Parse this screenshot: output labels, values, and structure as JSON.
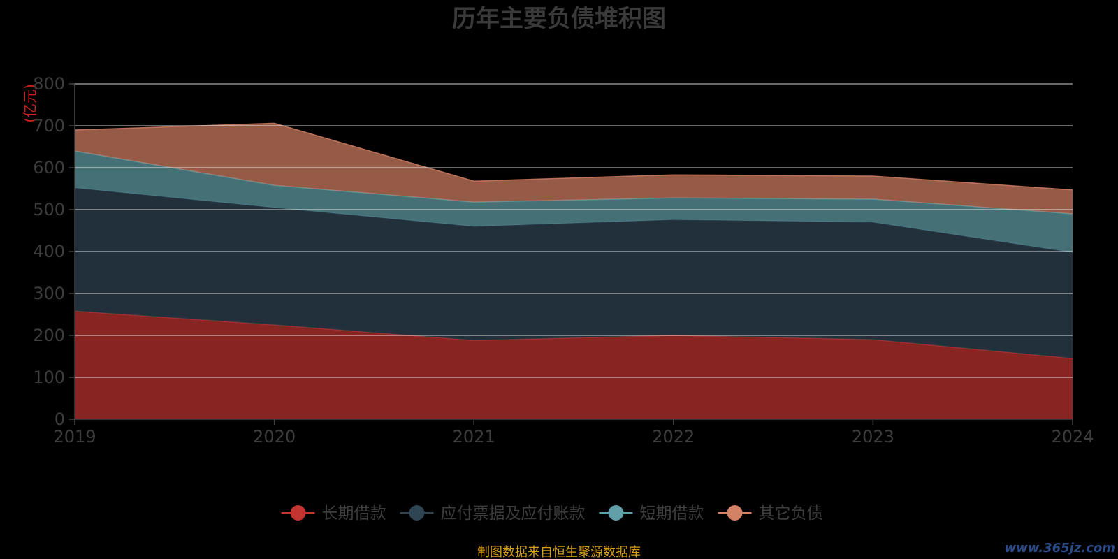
{
  "chart_data": {
    "type": "area",
    "stacked": true,
    "title": "历年主要负债堆积图",
    "unit_label": "(亿元)",
    "x": [
      "2019",
      "2020",
      "2021",
      "2022",
      "2023",
      "2024"
    ],
    "ylim": [
      0,
      800
    ],
    "yticks": [
      "0",
      "100",
      "200",
      "300",
      "400",
      "500",
      "600",
      "700",
      "800"
    ],
    "grid": true,
    "legend_position": "bottom",
    "series": [
      {
        "name": "长期借款",
        "color": "#c23531",
        "values": [
          258,
          225,
          188,
          200,
          190,
          145
        ]
      },
      {
        "name": "应付票据及应付账款",
        "color": "#2f4554",
        "values": [
          294,
          280,
          272,
          276,
          280,
          253
        ]
      },
      {
        "name": "短期借款",
        "color": "#61a0a8",
        "values": [
          88,
          53,
          58,
          52,
          55,
          92
        ]
      },
      {
        "name": "其它负债",
        "color": "#d48265",
        "values": [
          50,
          148,
          50,
          55,
          55,
          57
        ]
      }
    ]
  },
  "source_text": "制图数据来自恒生聚源数据库",
  "watermark_text": "www.365jz.com"
}
